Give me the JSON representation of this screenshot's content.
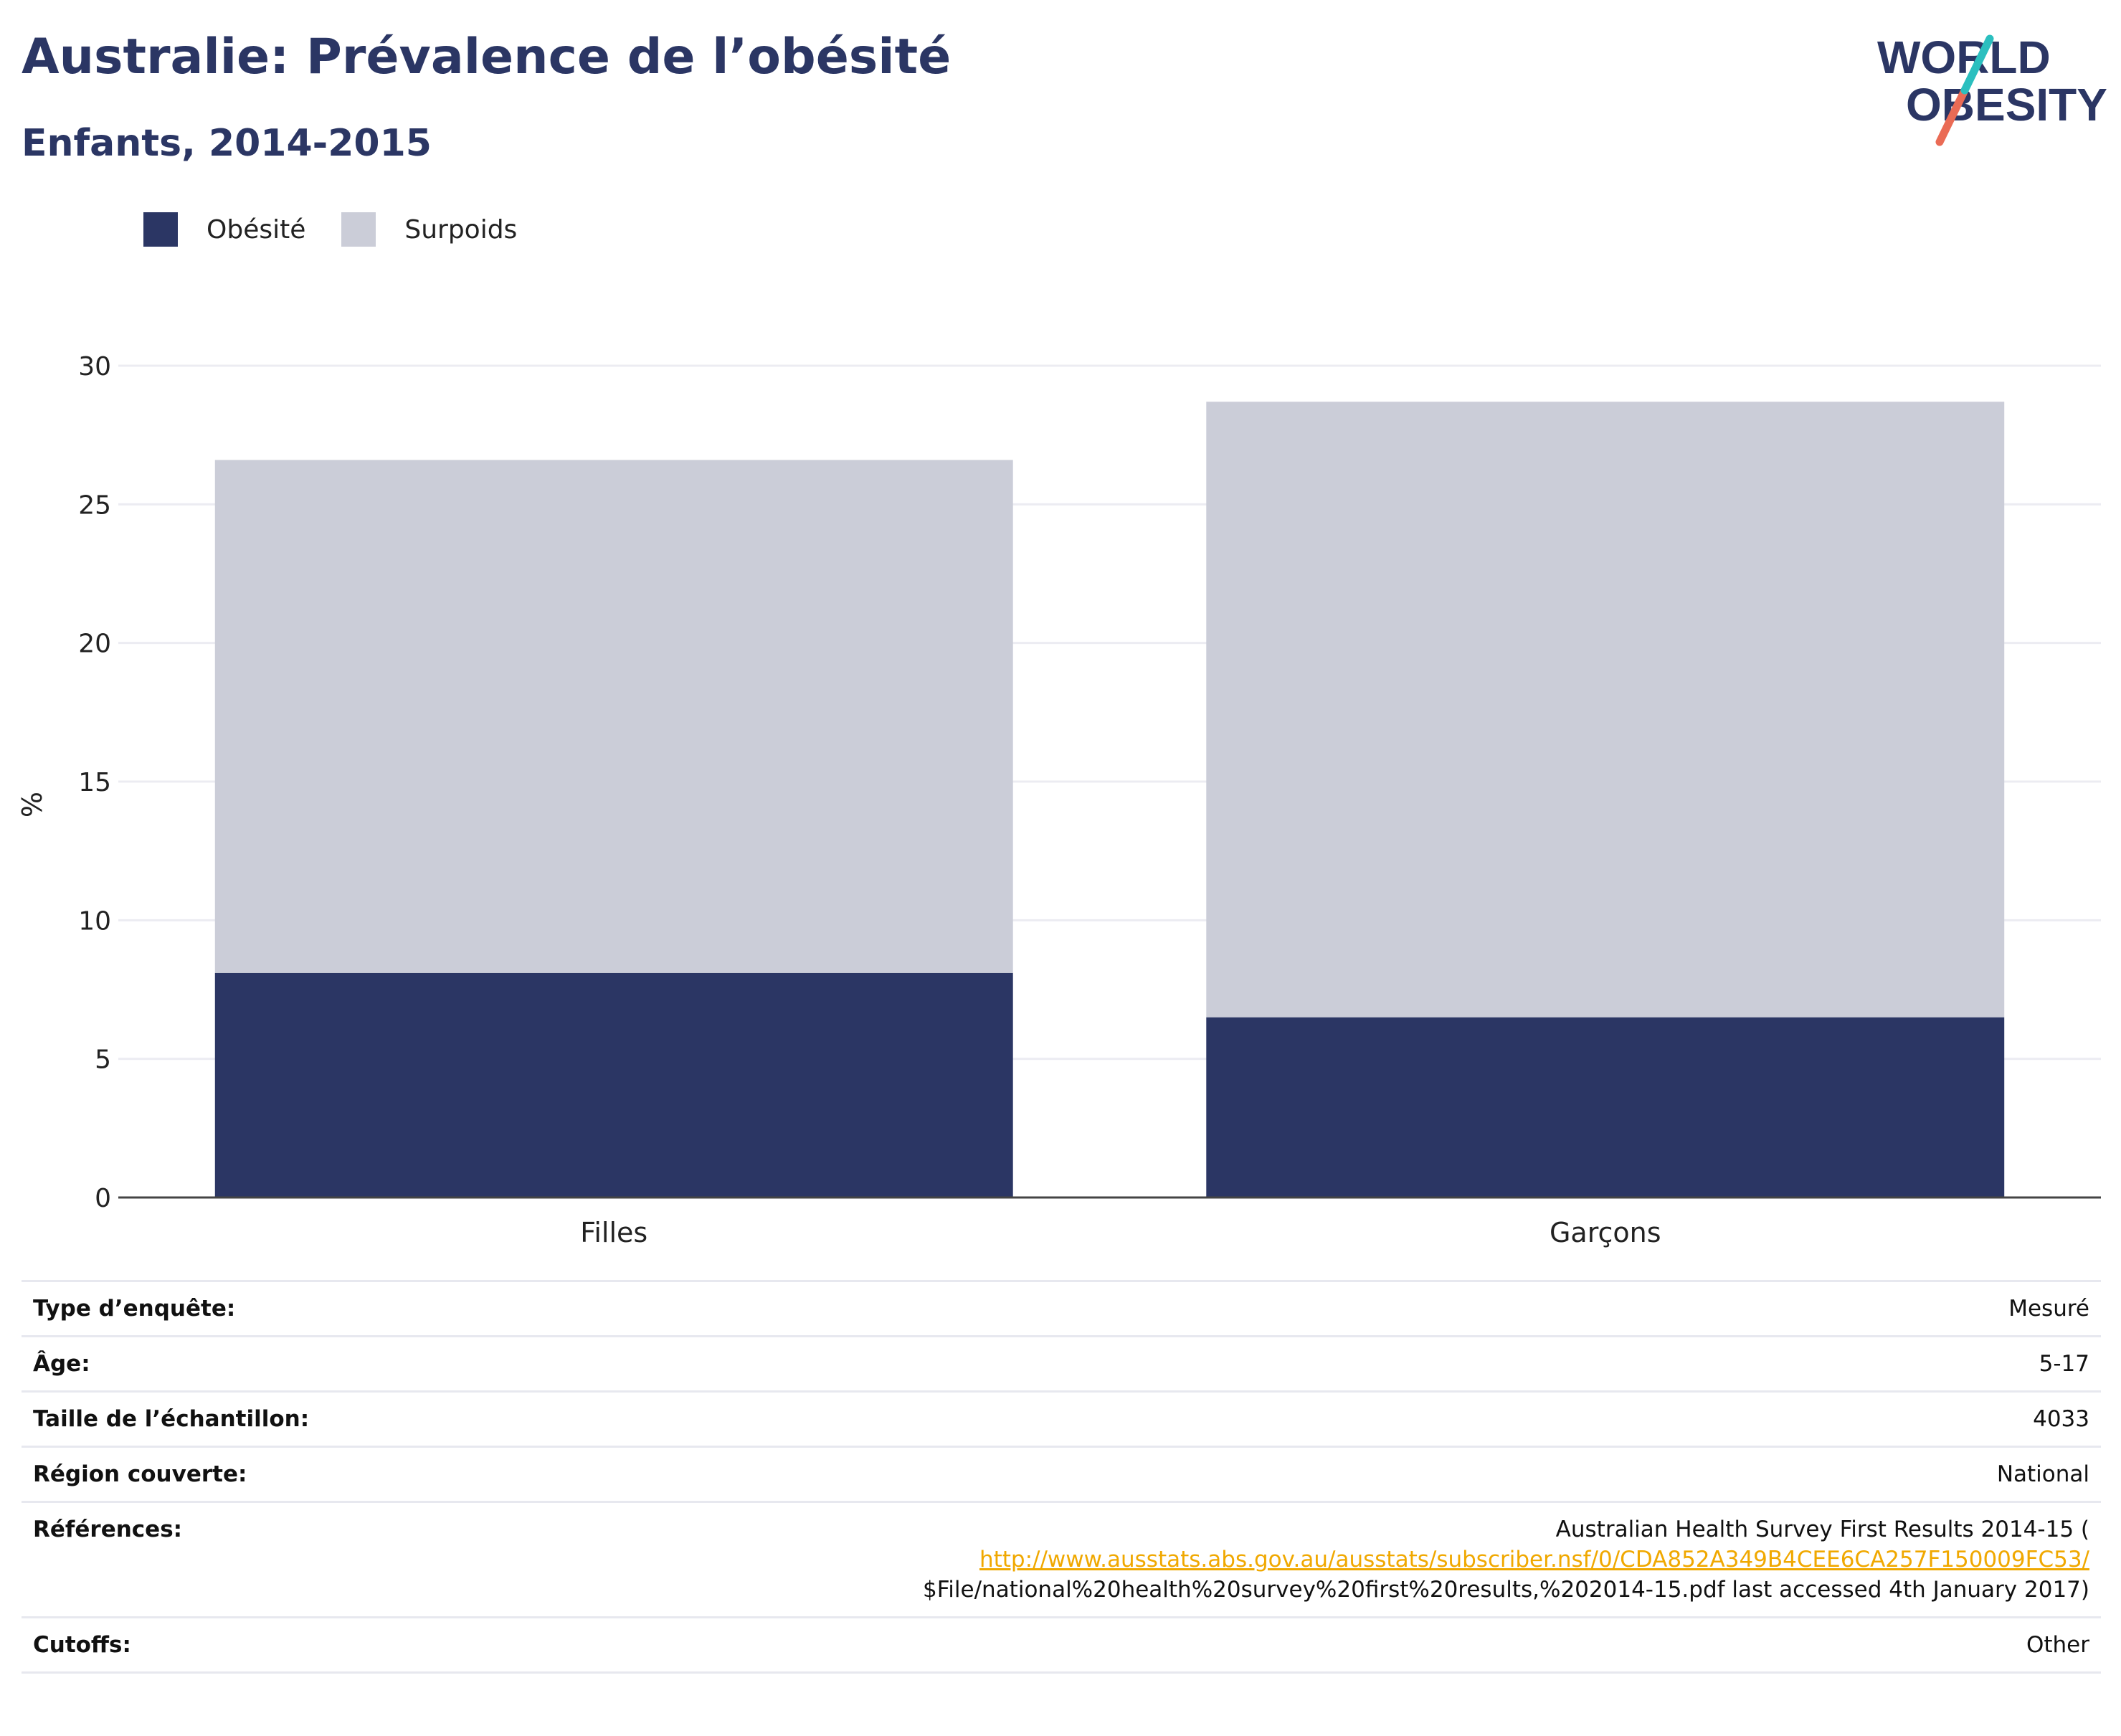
{
  "header": {
    "title": "Australie: Prévalence de l’obésité",
    "subtitle": "Enfants, 2014-2015"
  },
  "logo": {
    "line1": "WORLD",
    "line2": "OBESITY"
  },
  "colors": {
    "obesite": "#2b3664",
    "surpoids": "#cbcdd8",
    "title": "#2b3664",
    "logo_teal": "#2bbfbf",
    "logo_coral": "#ea6b55",
    "link": "#f0a800"
  },
  "chart_data": {
    "type": "bar",
    "stacked": true,
    "categories": [
      "Filles",
      "Garçons"
    ],
    "series": [
      {
        "name": "Obésité",
        "values": [
          8.1,
          6.5
        ]
      },
      {
        "name": "Surpoids",
        "values": [
          18.5,
          22.2
        ]
      }
    ],
    "ylabel": "%",
    "xlabel": "",
    "ylim": [
      0,
      30
    ],
    "yticks": [
      0,
      5,
      10,
      15,
      20,
      25,
      30
    ],
    "grid": true,
    "legend_position": "top-left"
  },
  "details": [
    {
      "label": "Type d’enquête:",
      "value": "Mesuré"
    },
    {
      "label": "Âge:",
      "value": "5-17"
    },
    {
      "label": "Taille de l’échantillon:",
      "value": "4033"
    },
    {
      "label": "Région couverte:",
      "value": "National"
    },
    {
      "label": "Références:",
      "value_lines": [
        "Australian Health Survey First Results 2014-15 (",
        "http://www.ausstats.abs.gov.au/ausstats/subscriber.nsf/0/CDA852A349B4CEE6CA257F150009FC53/",
        "$File/national%20health%20survey%20first%20results,%202014-15.pdf last accessed 4th January 2017)"
      ]
    },
    {
      "label": "Cutoffs:",
      "value": "Other"
    }
  ]
}
